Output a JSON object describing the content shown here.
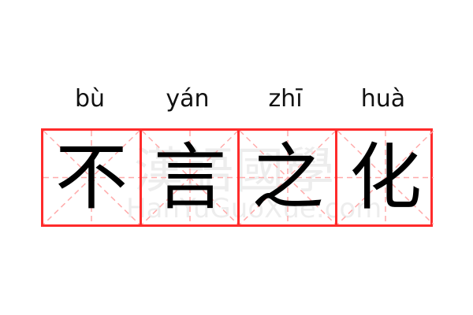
{
  "phrase": [
    {
      "pinyin": "bù",
      "char": "不"
    },
    {
      "pinyin": "yán",
      "char": "言"
    },
    {
      "pinyin": "zhī",
      "char": "之"
    },
    {
      "pinyin": "huà",
      "char": "化"
    }
  ],
  "watermark": {
    "chars": "漢語國學",
    "site": "HanYuGuoXue.com"
  },
  "colors": {
    "grid_border": "#ff2b2b",
    "guide_lines": "#ffaaaa"
  }
}
